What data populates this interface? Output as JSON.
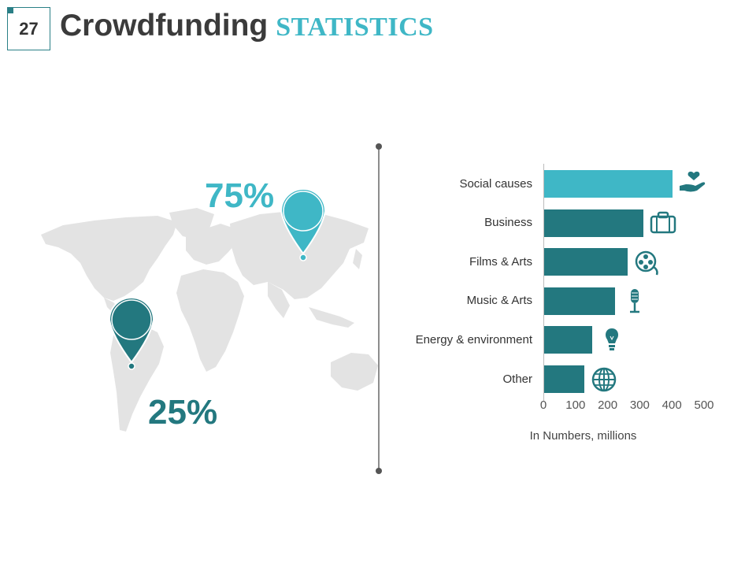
{
  "slide": {
    "number": "27",
    "title_main": "Crowdfunding",
    "title_accent": "STATISTICS"
  },
  "map": {
    "pins": [
      {
        "region": "Asia",
        "percent_label": "75%",
        "color": "#3fb7c6"
      },
      {
        "region": "South America",
        "percent_label": "25%",
        "color": "#23787f"
      }
    ]
  },
  "chart_data": {
    "type": "bar",
    "orientation": "horizontal",
    "categories": [
      "Social causes",
      "Business",
      "Films & Arts",
      "Music & Arts",
      "Energy & environment",
      "Other"
    ],
    "values": [
      400,
      310,
      260,
      220,
      150,
      125
    ],
    "xlabel": "In Numbers, millions",
    "xlim": [
      0,
      500
    ],
    "xticks": [
      "0",
      "100",
      "200",
      "300",
      "400",
      "500"
    ],
    "colors": [
      "#3fb7c6",
      "#23787f",
      "#23787f",
      "#23787f",
      "#23787f",
      "#23787f"
    ],
    "icons": [
      "heart-hand-icon",
      "briefcase-icon",
      "film-reel-icon",
      "microphone-icon",
      "lightbulb-icon",
      "globe-icon"
    ],
    "grid": false
  },
  "colors": {
    "accent_light": "#3fb7c6",
    "accent_dark": "#23787f",
    "map_fill": "#e3e3e3",
    "divider": "#666666"
  }
}
